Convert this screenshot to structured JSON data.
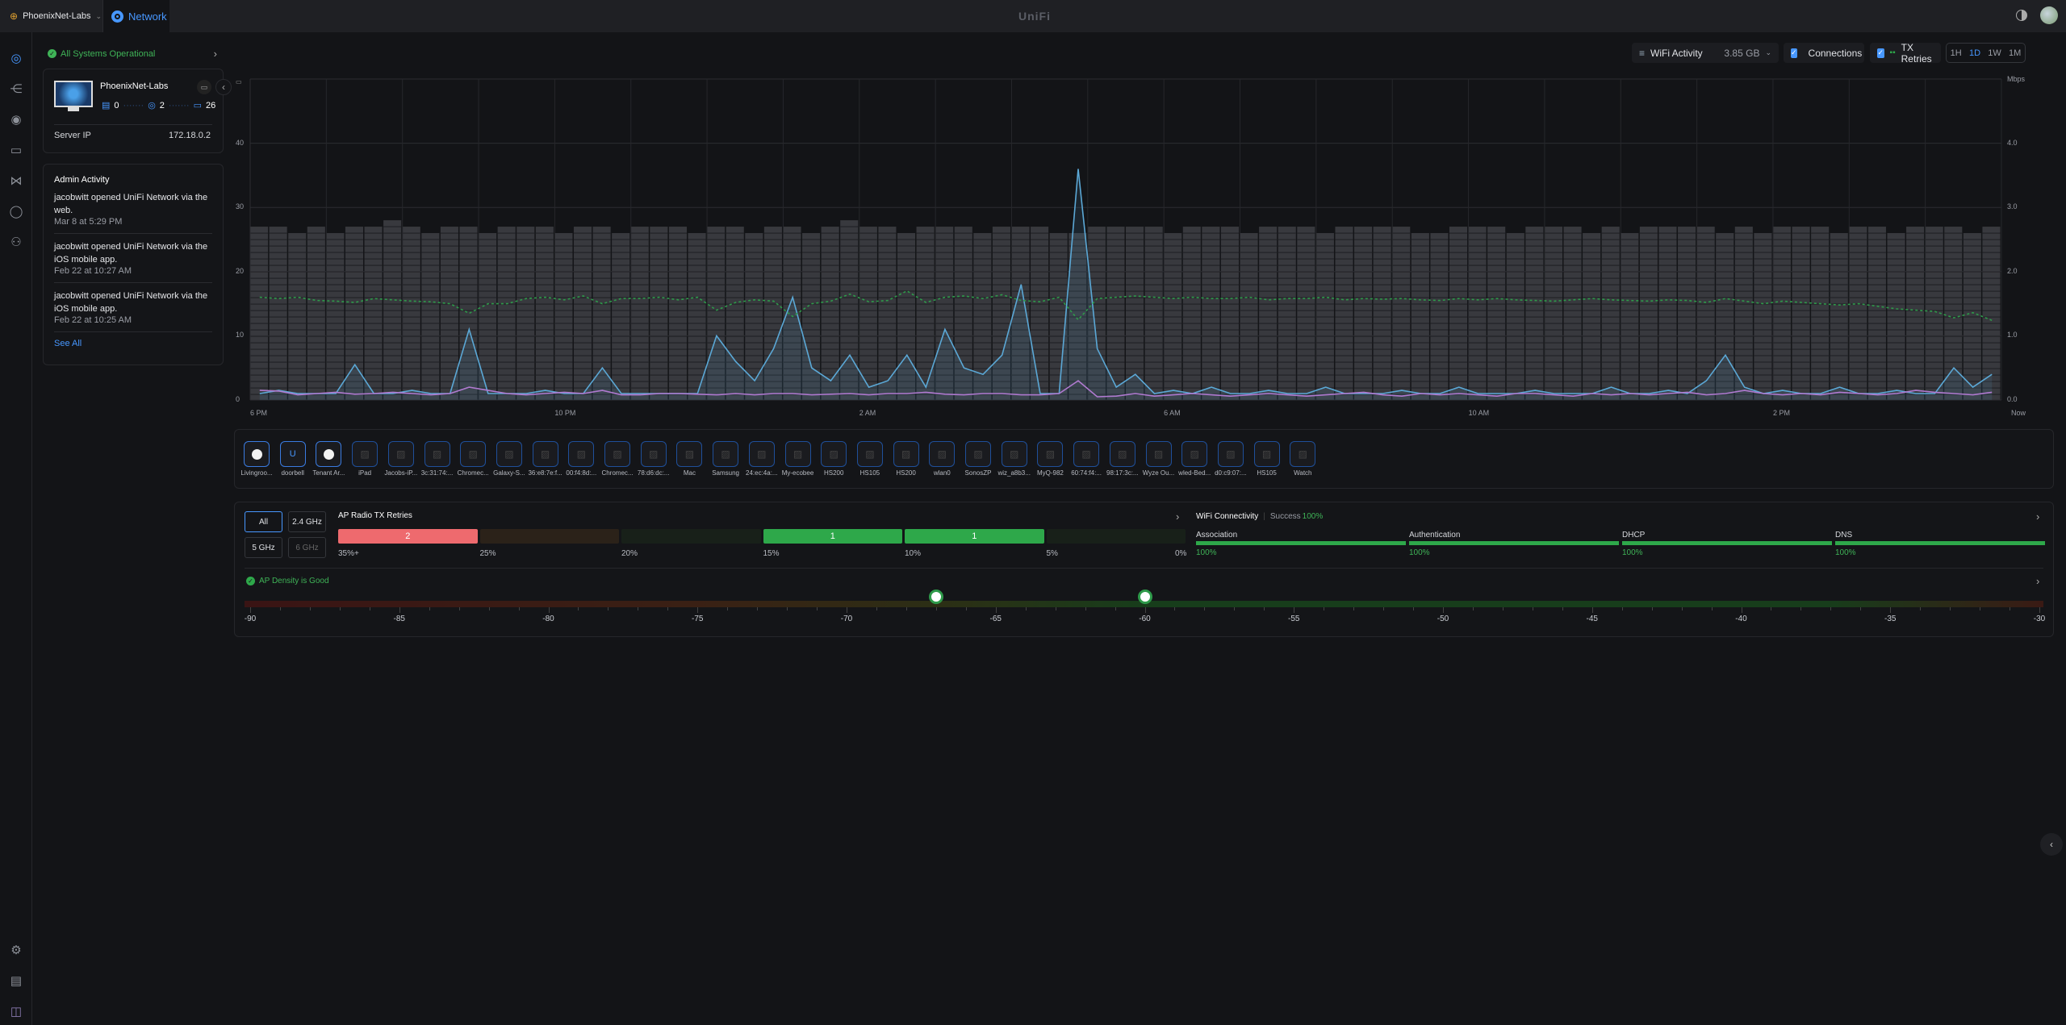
{
  "topbar": {
    "site": "PhoenixNet-Labs",
    "app": "Network",
    "logo": "UniFi",
    "icons": [
      "globe-icon",
      "chevron-down-icon",
      "network-icon",
      "theme-toggle-icon",
      "user-avatar"
    ]
  },
  "nav": {
    "items": [
      "dashboard",
      "topology",
      "unifi-devices",
      "client-devices",
      "insights",
      "security",
      "admins"
    ],
    "bottom": [
      "settings",
      "system-log",
      "innerspace"
    ]
  },
  "status": {
    "text": "All Systems Operational",
    "color": "#3fb357"
  },
  "gateway": {
    "name": "PhoenixNet-Labs",
    "gateways": "0",
    "aps": "2",
    "clients": "26",
    "server_ip_label": "Server IP",
    "server_ip": "172.18.0.2"
  },
  "admin": {
    "title": "Admin Activity",
    "items": [
      {
        "text": "jacobwitt opened UniFi Network via the web.",
        "time": "Mar 8 at 5:29 PM"
      },
      {
        "text": "jacobwitt opened UniFi Network via the iOS mobile app.",
        "time": "Feb 22 at 10:27 AM"
      },
      {
        "text": "jacobwitt opened UniFi Network via the iOS mobile app.",
        "time": "Feb 22 at 10:25 AM"
      }
    ],
    "see_all": "See All"
  },
  "controls": {
    "activity_label": "WiFi Activity",
    "activity_value": "3.85 GB",
    "connections_label": "Connections",
    "connections_checked": true,
    "retries_label": "TX Retries",
    "retries_checked": true,
    "ranges": [
      "1H",
      "1D",
      "1W",
      "1M"
    ],
    "active_range": "1D"
  },
  "chart_data": {
    "type": "bar+line",
    "x_ticks": [
      "6 PM",
      "10 PM",
      "2 AM",
      "6 AM",
      "10 AM",
      "2 PM",
      "Now"
    ],
    "ylabel_left": "",
    "ylabel_right": "Mbps",
    "yticks_left": [
      "0",
      "10",
      "20",
      "30",
      "40"
    ],
    "ylim_left": [
      0,
      50
    ],
    "yticks_right": [
      "0.0",
      "1.0",
      "2.0",
      "3.0",
      "4.0"
    ],
    "ylim_right": [
      0,
      5
    ],
    "grid": true,
    "connections": [
      27,
      27,
      26,
      27,
      26,
      27,
      27,
      28,
      27,
      26,
      27,
      27,
      26,
      27,
      27,
      27,
      26,
      27,
      27,
      26,
      27,
      27,
      27,
      26,
      27,
      27,
      26,
      27,
      27,
      26,
      27,
      28,
      27,
      27,
      26,
      27,
      27,
      27,
      26,
      27,
      27,
      27,
      26,
      26,
      27,
      27,
      27,
      27,
      26,
      27,
      27,
      27,
      26,
      27,
      27,
      27,
      26,
      27,
      27,
      27,
      27,
      26,
      26,
      27,
      27,
      27,
      26,
      27,
      27,
      27,
      26,
      27,
      26,
      27,
      27,
      27,
      27,
      26,
      27,
      26,
      27,
      27,
      27,
      26,
      27,
      27,
      26,
      27,
      27,
      27,
      26,
      27
    ],
    "series": [
      {
        "key": "download",
        "color": "#5ba8d6",
        "axis": "right",
        "values": [
          0.1,
          0.15,
          0.1,
          0.1,
          0.1,
          0.55,
          0.1,
          0.1,
          0.15,
          0.1,
          0.1,
          1.1,
          0.1,
          0.1,
          0.1,
          0.15,
          0.1,
          0.1,
          0.5,
          0.1,
          0.1,
          0.1,
          0.1,
          0.1,
          1.0,
          0.6,
          0.3,
          0.8,
          1.6,
          0.5,
          0.3,
          0.7,
          0.2,
          0.3,
          0.7,
          0.2,
          1.1,
          0.5,
          0.4,
          0.7,
          1.8,
          0.1,
          0.1,
          3.6,
          0.8,
          0.2,
          0.4,
          0.1,
          0.15,
          0.1,
          0.2,
          0.1,
          0.1,
          0.15,
          0.1,
          0.1,
          0.2,
          0.1,
          0.1,
          0.1,
          0.15,
          0.1,
          0.1,
          0.2,
          0.1,
          0.1,
          0.1,
          0.15,
          0.1,
          0.1,
          0.1,
          0.2,
          0.1,
          0.1,
          0.15,
          0.1,
          0.3,
          0.7,
          0.2,
          0.1,
          0.15,
          0.1,
          0.1,
          0.2,
          0.1,
          0.1,
          0.15,
          0.1,
          0.1,
          0.5,
          0.2,
          0.4
        ]
      },
      {
        "key": "upload",
        "color": "#b07ad0",
        "axis": "right",
        "values": [
          0.15,
          0.14,
          0.08,
          0.1,
          0.12,
          0.09,
          0.1,
          0.12,
          0.1,
          0.08,
          0.1,
          0.2,
          0.15,
          0.1,
          0.08,
          0.1,
          0.12,
          0.1,
          0.15,
          0.08,
          0.08,
          0.1,
          0.1,
          0.09,
          0.08,
          0.1,
          0.08,
          0.1,
          0.1,
          0.08,
          0.09,
          0.1,
          0.08,
          0.1,
          0.1,
          0.12,
          0.09,
          0.08,
          0.1,
          0.1,
          0.08,
          0.08,
          0.1,
          0.3,
          0.05,
          0.06,
          0.1,
          0.06,
          0.08,
          0.1,
          0.08,
          0.06,
          0.08,
          0.1,
          0.08,
          0.06,
          0.08,
          0.1,
          0.12,
          0.08,
          0.06,
          0.1,
          0.08,
          0.1,
          0.08,
          0.06,
          0.1,
          0.1,
          0.08,
          0.06,
          0.1,
          0.08,
          0.1,
          0.08,
          0.1,
          0.12,
          0.08,
          0.1,
          0.15,
          0.1,
          0.08,
          0.1,
          0.08,
          0.12,
          0.1,
          0.08,
          0.1,
          0.15,
          0.12,
          0.1,
          0.08,
          0.12
        ]
      },
      {
        "key": "tx_retries",
        "color": "#2e9a4a",
        "axis": "left",
        "dashed": true,
        "values": [
          16,
          15.8,
          16,
          15.5,
          15.4,
          15.2,
          15.8,
          15.6,
          15.4,
          15.3,
          15.0,
          13.5,
          15.0,
          15.0,
          15.8,
          16.0,
          15.6,
          16.2,
          15.0,
          15.8,
          15.8,
          16.0,
          15.6,
          16.0,
          14.0,
          15.2,
          15.6,
          15.4,
          13.0,
          15.0,
          15.4,
          16.5,
          15.3,
          15.5,
          17.0,
          15.2,
          16.0,
          16.2,
          15.8,
          16.4,
          15.5,
          15.3,
          16.0,
          12.5,
          15.8,
          16.0,
          16.2,
          16.0,
          15.8,
          16.0,
          15.8,
          15.8,
          16.0,
          15.6,
          15.8,
          15.8,
          16.0,
          15.6,
          15.8,
          15.7,
          15.8,
          15.6,
          15.5,
          15.8,
          15.6,
          15.8,
          15.6,
          15.5,
          15.4,
          15.6,
          15.8,
          15.6,
          15.5,
          15.4,
          15.6,
          15.5,
          15.2,
          15.8,
          15.4,
          15.0,
          15.4,
          15.2,
          15.0,
          14.8,
          15.0,
          14.6,
          14.2,
          14.0,
          13.8,
          12.8,
          13.6,
          12.4
        ]
      }
    ]
  },
  "devices": [
    {
      "name": "Livingroo...",
      "icon": "speaker-icon"
    },
    {
      "name": "doorbell",
      "icon": "doorbell-icon"
    },
    {
      "name": "Tenant Ar...",
      "icon": "speaker-icon"
    },
    {
      "name": "iPad",
      "icon": "device-icon"
    },
    {
      "name": "Jacobs-iP...",
      "icon": "device-icon"
    },
    {
      "name": "3c:31:74:...",
      "icon": "device-icon"
    },
    {
      "name": "Chromec...",
      "icon": "device-icon"
    },
    {
      "name": "Galaxy-S...",
      "icon": "device-icon"
    },
    {
      "name": "36:e8:7e:f...",
      "icon": "device-icon"
    },
    {
      "name": "00:f4:8d:...",
      "icon": "device-icon"
    },
    {
      "name": "Chromec...",
      "icon": "device-icon"
    },
    {
      "name": "78:d6:dc:...",
      "icon": "device-icon"
    },
    {
      "name": "Mac",
      "icon": "device-icon"
    },
    {
      "name": "Samsung",
      "icon": "device-icon"
    },
    {
      "name": "24:ec:4a:...",
      "icon": "device-icon"
    },
    {
      "name": "My-ecobee",
      "icon": "device-icon"
    },
    {
      "name": "HS200",
      "icon": "device-icon"
    },
    {
      "name": "HS105",
      "icon": "device-icon"
    },
    {
      "name": "HS200",
      "icon": "device-icon"
    },
    {
      "name": "wlan0",
      "icon": "device-icon"
    },
    {
      "name": "SonosZP",
      "icon": "device-icon"
    },
    {
      "name": "wiz_a8b3...",
      "icon": "device-icon"
    },
    {
      "name": "MyQ-982",
      "icon": "device-icon"
    },
    {
      "name": "60:74:f4:...",
      "icon": "device-icon"
    },
    {
      "name": "98:17:3c:...",
      "icon": "device-icon"
    },
    {
      "name": "Wyze Ou...",
      "icon": "device-icon"
    },
    {
      "name": "wled-Bed...",
      "icon": "device-icon"
    },
    {
      "name": "d0:c9:07:...",
      "icon": "device-icon"
    },
    {
      "name": "HS105",
      "icon": "device-icon"
    },
    {
      "name": "Watch",
      "icon": "device-icon"
    }
  ],
  "bands": {
    "all": "All",
    "b24": "2.4 GHz",
    "b5": "5 GHz",
    "b6": "6 GHz",
    "active": "All"
  },
  "retries": {
    "title": "AP Radio TX Retries",
    "segments": [
      {
        "count": "2",
        "color": "#ee6a6e"
      },
      {
        "count": "",
        "color": "#2b2219"
      },
      {
        "count": "",
        "color": "#182019"
      },
      {
        "count": "1",
        "color": "#2ea84a"
      },
      {
        "count": "1",
        "color": "#2ea84a"
      },
      {
        "count": "",
        "color": "#182019"
      }
    ],
    "labels": [
      "35%+",
      "25%",
      "20%",
      "15%",
      "10%",
      "5%",
      "0%"
    ]
  },
  "connectivity": {
    "title": "WiFi Connectivity",
    "success_label": "Success",
    "success_value": "100%",
    "steps": [
      {
        "label": "Association",
        "value": "100%"
      },
      {
        "label": "Authentication",
        "value": "100%"
      },
      {
        "label": "DHCP",
        "value": "100%"
      },
      {
        "label": "DNS",
        "value": "100%"
      }
    ]
  },
  "density": {
    "title": "AP Density is Good",
    "ticks": [
      "-90",
      "-85",
      "-80",
      "-75",
      "-70",
      "-65",
      "-60",
      "-55",
      "-50",
      "-45",
      "-40",
      "-35",
      "-30"
    ],
    "ap_markers_dbm": [
      -67,
      -60
    ]
  }
}
